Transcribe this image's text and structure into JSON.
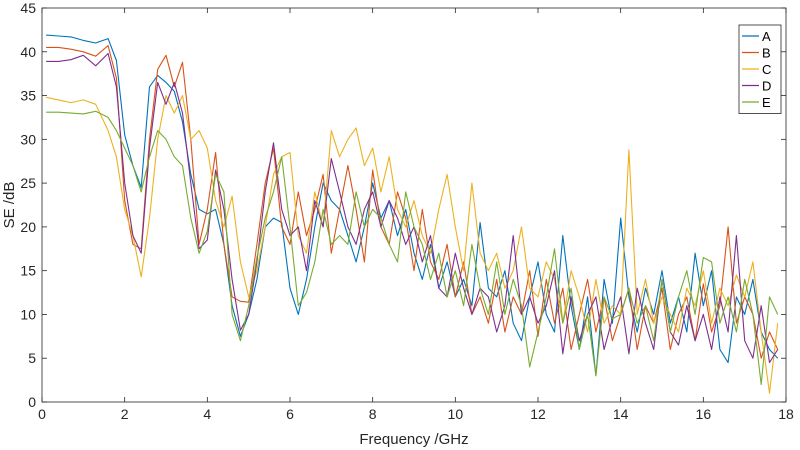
{
  "chart_data": {
    "type": "line",
    "title": "",
    "xlabel": "Frequency /GHz",
    "ylabel": "SE /dB",
    "xlim": [
      0,
      18
    ],
    "ylim": [
      0,
      45
    ],
    "xticks": [
      0,
      2,
      4,
      6,
      8,
      10,
      12,
      14,
      16,
      18
    ],
    "yticks": [
      0,
      5,
      10,
      15,
      20,
      25,
      30,
      35,
      40,
      45
    ],
    "grid": false,
    "legend_position": "top-right",
    "series": [
      {
        "name": "A",
        "color": "#0072BD",
        "x": [
          0.1,
          0.4,
          0.7,
          1.0,
          1.3,
          1.6,
          1.8,
          2.0,
          2.2,
          2.4,
          2.6,
          2.8,
          3.0,
          3.2,
          3.4,
          3.6,
          3.8,
          4.0,
          4.2,
          4.4,
          4.6,
          4.8,
          5.0,
          5.2,
          5.4,
          5.6,
          5.8,
          6.0,
          6.2,
          6.4,
          6.6,
          6.8,
          7.0,
          7.2,
          7.4,
          7.6,
          7.8,
          8.0,
          8.2,
          8.4,
          8.6,
          8.8,
          9.0,
          9.2,
          9.4,
          9.6,
          9.8,
          10.0,
          10.2,
          10.4,
          10.6,
          10.8,
          11.0,
          11.2,
          11.4,
          11.6,
          11.8,
          12.0,
          12.2,
          12.4,
          12.6,
          12.8,
          13.0,
          13.2,
          13.4,
          13.6,
          13.8,
          14.0,
          14.2,
          14.4,
          14.6,
          14.8,
          15.0,
          15.2,
          15.4,
          15.6,
          15.8,
          16.0,
          16.2,
          16.4,
          16.6,
          16.8,
          17.0,
          17.2,
          17.4,
          17.6,
          17.8
        ],
        "y": [
          41.9,
          41.8,
          41.7,
          41.3,
          41.0,
          41.5,
          39.0,
          30.5,
          27.0,
          24.5,
          36.0,
          37.3,
          36.5,
          35.5,
          32.0,
          26.0,
          22.0,
          21.5,
          22.0,
          18.0,
          11.0,
          7.5,
          10.0,
          14.0,
          20.0,
          21.0,
          20.5,
          13.0,
          10.0,
          14.0,
          20.0,
          25.0,
          23.0,
          22.0,
          19.0,
          16.0,
          20.0,
          25.0,
          21.0,
          23.0,
          19.0,
          22.0,
          17.0,
          14.0,
          18.0,
          13.0,
          16.0,
          12.0,
          14.0,
          11.0,
          20.5,
          13.0,
          12.0,
          15.0,
          9.0,
          7.0,
          12.0,
          16.0,
          10.0,
          8.0,
          19.0,
          11.0,
          6.0,
          12.0,
          3.0,
          14.0,
          9.0,
          21.0,
          12.0,
          8.0,
          13.0,
          10.0,
          15.0,
          9.0,
          12.0,
          8.0,
          17.0,
          11.0,
          15.0,
          6.0,
          4.5,
          12.0,
          10.0,
          14.0,
          8.0,
          6.0,
          5.0
        ]
      },
      {
        "name": "B",
        "color": "#D95319",
        "x": [
          0.1,
          0.4,
          0.7,
          1.0,
          1.3,
          1.6,
          1.8,
          2.0,
          2.2,
          2.4,
          2.6,
          2.8,
          3.0,
          3.2,
          3.4,
          3.6,
          3.8,
          4.0,
          4.2,
          4.4,
          4.6,
          4.8,
          5.0,
          5.2,
          5.4,
          5.6,
          5.8,
          6.0,
          6.2,
          6.4,
          6.6,
          6.8,
          7.0,
          7.2,
          7.4,
          7.6,
          7.8,
          8.0,
          8.2,
          8.4,
          8.6,
          8.8,
          9.0,
          9.2,
          9.4,
          9.6,
          9.8,
          10.0,
          10.2,
          10.4,
          10.6,
          10.8,
          11.0,
          11.2,
          11.4,
          11.6,
          11.8,
          12.0,
          12.2,
          12.4,
          12.6,
          12.8,
          13.0,
          13.2,
          13.4,
          13.6,
          13.8,
          14.0,
          14.2,
          14.4,
          14.6,
          14.8,
          15.0,
          15.2,
          15.4,
          15.6,
          15.8,
          16.0,
          16.2,
          16.4,
          16.6,
          16.8,
          17.0,
          17.2,
          17.4,
          17.6,
          17.8
        ],
        "y": [
          40.5,
          40.5,
          40.3,
          40.0,
          39.5,
          40.7,
          37.0,
          23.0,
          18.0,
          17.5,
          30.0,
          38.0,
          39.6,
          36.0,
          38.8,
          30.0,
          18.0,
          22.0,
          28.5,
          18.0,
          12.0,
          11.5,
          11.4,
          18.0,
          25.0,
          29.0,
          20.0,
          18.0,
          24.0,
          19.0,
          22.0,
          26.0,
          17.0,
          22.0,
          27.0,
          22.0,
          16.0,
          26.5,
          20.0,
          18.0,
          24.0,
          21.0,
          15.0,
          22.0,
          16.0,
          14.0,
          18.0,
          12.0,
          16.0,
          10.0,
          12.0,
          9.0,
          14.0,
          8.0,
          12.0,
          10.0,
          15.0,
          7.5,
          14.0,
          9.0,
          13.0,
          6.0,
          10.0,
          14.0,
          8.0,
          12.0,
          7.0,
          10.0,
          13.0,
          6.0,
          11.0,
          9.0,
          13.0,
          6.0,
          10.0,
          12.0,
          7.0,
          13.5,
          8.0,
          11.0,
          20.0,
          9.0,
          12.0,
          10.0,
          5.0,
          8.0,
          6.0
        ]
      },
      {
        "name": "C",
        "color": "#EDB120",
        "x": [
          0.1,
          0.4,
          0.7,
          1.0,
          1.3,
          1.6,
          1.8,
          2.0,
          2.2,
          2.4,
          2.6,
          2.8,
          3.0,
          3.2,
          3.4,
          3.6,
          3.8,
          4.0,
          4.2,
          4.4,
          4.6,
          4.8,
          5.0,
          5.2,
          5.4,
          5.6,
          5.8,
          6.0,
          6.2,
          6.4,
          6.6,
          6.8,
          7.0,
          7.2,
          7.4,
          7.6,
          7.8,
          8.0,
          8.2,
          8.4,
          8.6,
          8.8,
          9.0,
          9.2,
          9.4,
          9.6,
          9.8,
          10.0,
          10.2,
          10.4,
          10.6,
          10.8,
          11.0,
          11.2,
          11.4,
          11.6,
          11.8,
          12.0,
          12.2,
          12.4,
          12.6,
          12.8,
          13.0,
          13.2,
          13.4,
          13.6,
          13.8,
          14.0,
          14.2,
          14.4,
          14.6,
          14.8,
          15.0,
          15.2,
          15.4,
          15.6,
          15.8,
          16.0,
          16.2,
          16.4,
          16.6,
          16.8,
          17.0,
          17.2,
          17.4,
          17.6,
          17.8
        ],
        "y": [
          34.8,
          34.5,
          34.2,
          34.5,
          34.0,
          31.0,
          28.0,
          22.0,
          19.0,
          14.3,
          21.0,
          30.0,
          35.0,
          33.0,
          35.0,
          30.0,
          31.0,
          29.0,
          23.0,
          20.0,
          23.5,
          16.0,
          12.0,
          15.0,
          20.0,
          26.0,
          28.0,
          28.5,
          19.0,
          17.0,
          24.0,
          20.0,
          31.0,
          28.0,
          30.0,
          31.3,
          27.0,
          29.0,
          24.0,
          28.0,
          22.0,
          20.0,
          23.0,
          19.0,
          17.0,
          22.0,
          26.0,
          20.0,
          15.0,
          25.0,
          17.0,
          15.0,
          17.0,
          13.0,
          15.0,
          20.0,
          13.0,
          12.0,
          16.0,
          14.0,
          9.0,
          15.0,
          12.0,
          8.0,
          14.0,
          9.0,
          11.0,
          10.0,
          28.8,
          10.0,
          14.0,
          9.0,
          12.0,
          10.0,
          8.0,
          13.0,
          11.0,
          15.0,
          9.0,
          13.0,
          11.0,
          14.5,
          12.0,
          16.0,
          8.0,
          1.0,
          9.0
        ]
      },
      {
        "name": "D",
        "color": "#7E2F8E",
        "x": [
          0.1,
          0.4,
          0.7,
          1.0,
          1.3,
          1.6,
          1.8,
          2.0,
          2.2,
          2.4,
          2.6,
          2.8,
          3.0,
          3.2,
          3.4,
          3.6,
          3.8,
          4.0,
          4.2,
          4.4,
          4.6,
          4.8,
          5.0,
          5.2,
          5.4,
          5.6,
          5.8,
          6.0,
          6.2,
          6.4,
          6.6,
          6.8,
          7.0,
          7.2,
          7.4,
          7.6,
          7.8,
          8.0,
          8.2,
          8.4,
          8.6,
          8.8,
          9.0,
          9.2,
          9.4,
          9.6,
          9.8,
          10.0,
          10.2,
          10.4,
          10.6,
          10.8,
          11.0,
          11.2,
          11.4,
          11.6,
          11.8,
          12.0,
          12.2,
          12.4,
          12.6,
          12.8,
          13.0,
          13.2,
          13.4,
          13.6,
          13.8,
          14.0,
          14.2,
          14.4,
          14.6,
          14.8,
          15.0,
          15.2,
          15.4,
          15.6,
          15.8,
          16.0,
          16.2,
          16.4,
          16.6,
          16.8,
          17.0,
          17.2,
          17.4,
          17.6,
          17.8
        ],
        "y": [
          38.9,
          38.9,
          39.1,
          39.6,
          38.4,
          39.8,
          36.0,
          25.0,
          19.0,
          17.0,
          29.0,
          36.5,
          34.0,
          36.5,
          33.0,
          25.0,
          17.5,
          18.5,
          26.5,
          22.0,
          14.0,
          8.2,
          10.0,
          16.0,
          24.0,
          29.6,
          22.0,
          19.0,
          20.0,
          15.0,
          23.0,
          20.0,
          27.8,
          24.0,
          20.0,
          18.0,
          22.0,
          24.0,
          20.0,
          23.0,
          21.0,
          18.0,
          20.0,
          16.0,
          19.0,
          13.0,
          12.0,
          17.0,
          13.0,
          10.0,
          13.0,
          12.0,
          8.0,
          11.0,
          19.0,
          10.0,
          12.0,
          9.0,
          11.0,
          15.0,
          5.5,
          12.0,
          7.0,
          10.0,
          12.0,
          6.0,
          9.5,
          12.0,
          5.5,
          13.0,
          9.0,
          6.0,
          14.0,
          8.0,
          6.5,
          11.0,
          7.0,
          10.0,
          6.0,
          12.0,
          8.0,
          19.0,
          7.0,
          5.0,
          11.0,
          4.5,
          6.0
        ]
      },
      {
        "name": "E",
        "color": "#77AC30",
        "x": [
          0.1,
          0.4,
          0.7,
          1.0,
          1.3,
          1.6,
          1.8,
          2.0,
          2.2,
          2.4,
          2.6,
          2.8,
          3.0,
          3.2,
          3.4,
          3.6,
          3.8,
          4.0,
          4.2,
          4.4,
          4.6,
          4.8,
          5.0,
          5.2,
          5.4,
          5.6,
          5.8,
          6.0,
          6.2,
          6.4,
          6.6,
          6.8,
          7.0,
          7.2,
          7.4,
          7.6,
          7.8,
          8.0,
          8.2,
          8.4,
          8.6,
          8.8,
          9.0,
          9.2,
          9.4,
          9.6,
          9.8,
          10.0,
          10.2,
          10.4,
          10.6,
          10.8,
          11.0,
          11.2,
          11.4,
          11.6,
          11.8,
          12.0,
          12.2,
          12.4,
          12.6,
          12.8,
          13.0,
          13.2,
          13.4,
          13.6,
          13.8,
          14.0,
          14.2,
          14.4,
          14.6,
          14.8,
          15.0,
          15.2,
          15.4,
          15.6,
          15.8,
          16.0,
          16.2,
          16.4,
          16.6,
          16.8,
          17.0,
          17.2,
          17.4,
          17.6,
          17.8
        ],
        "y": [
          33.1,
          33.1,
          33.0,
          32.9,
          33.2,
          32.5,
          31.0,
          29.0,
          27.0,
          24.0,
          28.0,
          31.0,
          30.0,
          28.0,
          27.0,
          21.0,
          17.0,
          19.5,
          26.0,
          24.0,
          10.0,
          7.0,
          11.0,
          16.5,
          21.0,
          24.0,
          28.0,
          20.0,
          11.0,
          12.5,
          16.0,
          22.0,
          18.0,
          19.0,
          18.0,
          24.0,
          20.0,
          22.0,
          21.0,
          18.0,
          16.0,
          24.0,
          20.0,
          18.0,
          14.0,
          17.0,
          12.0,
          15.0,
          11.0,
          18.0,
          13.0,
          10.0,
          16.0,
          10.0,
          14.0,
          11.0,
          4.0,
          8.0,
          12.0,
          17.5,
          9.0,
          13.0,
          6.0,
          10.0,
          3.0,
          12.0,
          9.5,
          10.0,
          13.0,
          9.0,
          11.0,
          7.0,
          14.0,
          8.0,
          12.0,
          15.0,
          10.0,
          16.5,
          16.0,
          9.0,
          12.0,
          8.0,
          14.0,
          10.0,
          2.0,
          12.0,
          10.0
        ]
      }
    ]
  }
}
